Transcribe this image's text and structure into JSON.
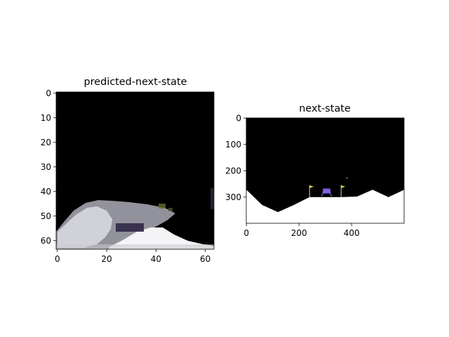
{
  "chart_data": [
    {
      "type": "image",
      "title": "predicted-next-state",
      "xlim": [
        -0.5,
        63.5
      ],
      "ylim": [
        63.5,
        -0.5
      ],
      "xticks": [
        0,
        20,
        40,
        60
      ],
      "xtick_labels": [
        "0",
        "20",
        "40",
        "60"
      ],
      "yticks": [
        0,
        10,
        20,
        30,
        40,
        50,
        60
      ],
      "ytick_labels": [
        "0",
        "10",
        "20",
        "30",
        "40",
        "50",
        "60"
      ],
      "background_color": "#000000",
      "content": "blurry reconstruction: grey-white terrain mass lower-left, white terrain lower-middle, faint purple/yellow speckles"
    },
    {
      "type": "image",
      "title": "next-state",
      "xlim": [
        -0.5,
        599.5
      ],
      "ylim": [
        399.5,
        -0.5
      ],
      "xticks": [
        0,
        200,
        400
      ],
      "xtick_labels": [
        "0",
        "200",
        "400"
      ],
      "yticks": [
        0,
        100,
        200,
        300
      ],
      "ytick_labels": [
        "0",
        "100",
        "200",
        "300"
      ],
      "background_color": "#000000",
      "terrain_color": "#ffffff",
      "lander_color": "#8060e0",
      "flag_color": "#e0d040",
      "terrain": [
        [
          0,
          272
        ],
        [
          60,
          330
        ],
        [
          120,
          357
        ],
        [
          180,
          330
        ],
        [
          240,
          300
        ],
        [
          360,
          300
        ],
        [
          420,
          298
        ],
        [
          480,
          272
        ],
        [
          540,
          300
        ],
        [
          600,
          272
        ]
      ],
      "landing_pad": [
        240,
        360
      ],
      "lander": {
        "x": 305,
        "y": 278
      }
    }
  ]
}
